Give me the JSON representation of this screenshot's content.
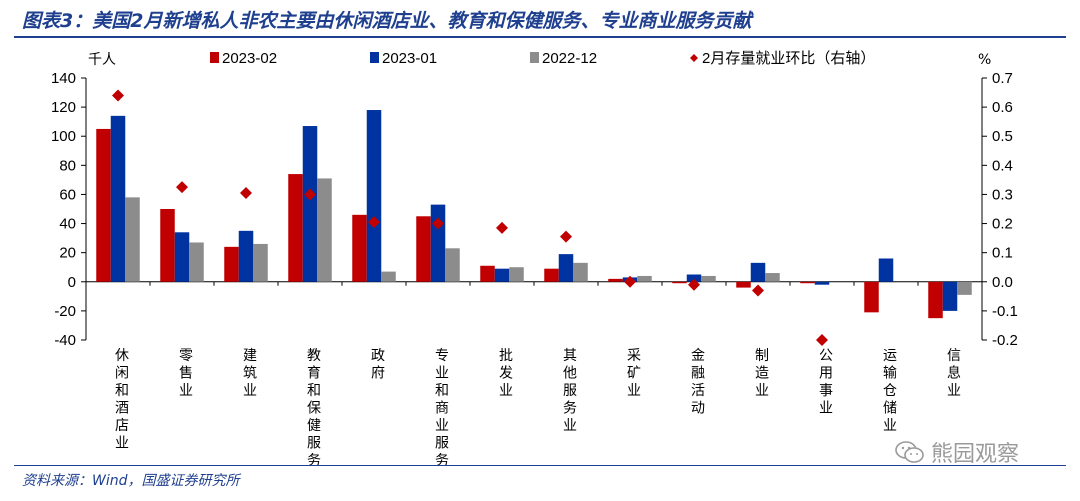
{
  "title": "图表3：美国2月新增私人非农主要由休闲酒店业、教育和保健服务、专业商业服务贡献",
  "source": "资料来源：Wind，国盛证券研究所",
  "watermark": "熊园观察",
  "colors": {
    "series_2023_02": "#c00000",
    "series_2023_01": "#0033a0",
    "series_2022_12": "#8c8c8c",
    "diamond": "#c00000",
    "title": "#1f3f8f"
  },
  "chart_data": {
    "type": "bar",
    "title": "",
    "left_unit": "千人",
    "right_unit": "%",
    "categories": [
      "休闲和酒店业",
      "零售业",
      "建筑业",
      "教育和保健服务",
      "政府",
      "专业和商业服务",
      "批发业",
      "其他服务业",
      "采矿业",
      "金融活动",
      "制造业",
      "公用事业",
      "运输仓储业",
      "信息业"
    ],
    "series": [
      {
        "name": "2023-02",
        "values": [
          105,
          50,
          24,
          74,
          46,
          45,
          11,
          9,
          2,
          -1,
          -4,
          -1,
          -21,
          -25
        ]
      },
      {
        "name": "2023-01",
        "values": [
          114,
          34,
          35,
          107,
          118,
          53,
          9,
          19,
          3,
          5,
          13,
          -2,
          16,
          -20
        ]
      },
      {
        "name": "2022-12",
        "values": [
          58,
          27,
          26,
          71,
          7,
          23,
          10,
          13,
          4,
          4,
          6,
          0,
          0,
          -9
        ]
      }
    ],
    "right_series": {
      "name": "2月存量就业环比（右轴）",
      "values": [
        0.64,
        0.325,
        0.305,
        0.3,
        0.205,
        0.2,
        0.185,
        0.155,
        0.0,
        -0.01,
        -0.03,
        -0.2,
        null,
        null
      ]
    },
    "ylim": [
      -40,
      140
    ],
    "y_ticks": [
      -40,
      -20,
      0,
      20,
      40,
      60,
      80,
      100,
      120,
      140
    ],
    "y2lim": [
      -0.2,
      0.7
    ],
    "y2_ticks": [
      -0.2,
      -0.1,
      0.0,
      0.1,
      0.2,
      0.3,
      0.4,
      0.5,
      0.6,
      0.7
    ],
    "legend_position": "top",
    "grid": false
  }
}
